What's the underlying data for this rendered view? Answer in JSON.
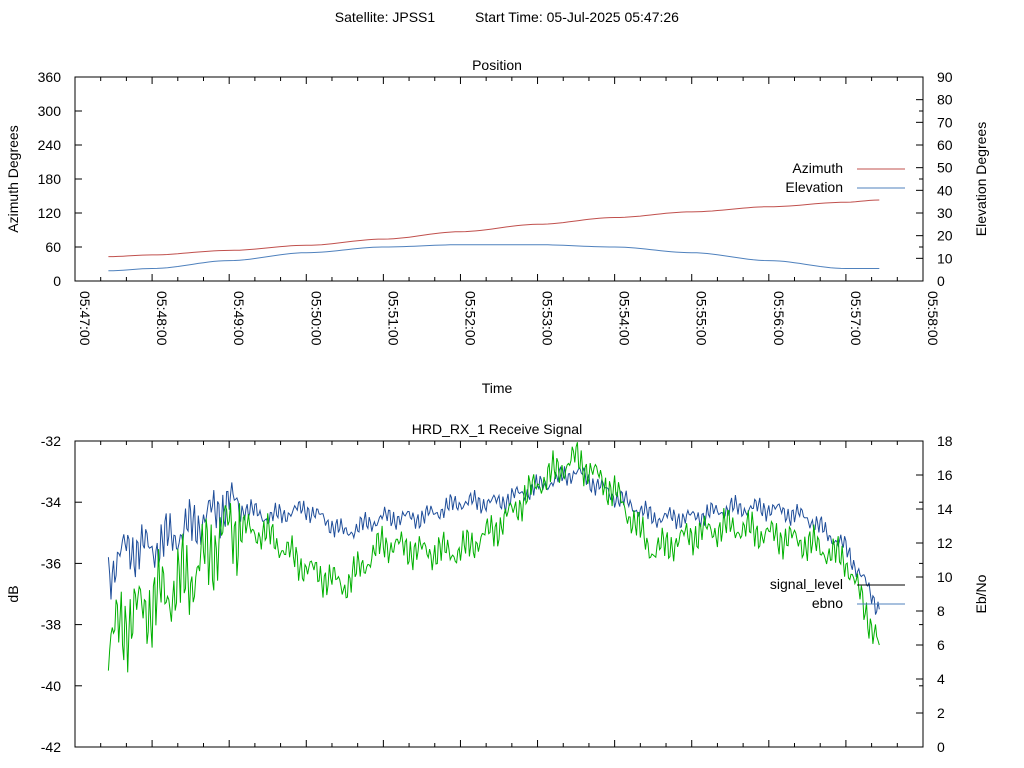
{
  "header": {
    "satellite": "Satellite: JPSS1",
    "start_time": "Start Time: 05-Jul-2025 05:47:26"
  },
  "colors": {
    "azimuth": "#c0504d",
    "elevation": "#4f81bd",
    "signal_level": "#1f4e9a",
    "ebno": "#00b000",
    "axes": "#000000"
  },
  "chart_data": [
    {
      "type": "line",
      "title": "Position",
      "xlabel": "Time",
      "ylabel": "Azimuth Degrees",
      "y2label": "Elevation Degrees",
      "xlim": [
        "05:47:00",
        "05:58:00"
      ],
      "x_ticks": [
        "05:47:00",
        "05:48:00",
        "05:49:00",
        "05:50:00",
        "05:51:00",
        "05:52:00",
        "05:53:00",
        "05:54:00",
        "05:55:00",
        "05:56:00",
        "05:57:00",
        "05:58:00"
      ],
      "ylim": [
        0,
        360
      ],
      "y_ticks": [
        "0",
        "60",
        "120",
        "180",
        "240",
        "300",
        "360"
      ],
      "y2lim": [
        0,
        90
      ],
      "y2_ticks": [
        "0",
        "10",
        "20",
        "30",
        "40",
        "50",
        "60",
        "70",
        "80",
        "90"
      ],
      "grid": false,
      "legend": "top-right",
      "series": [
        {
          "name": "Azimuth",
          "axis": "y",
          "x": [
            "05:47:26",
            "05:48:00",
            "05:49:00",
            "05:50:00",
            "05:51:00",
            "05:52:00",
            "05:53:00",
            "05:54:00",
            "05:55:00",
            "05:56:00",
            "05:57:00",
            "05:57:26"
          ],
          "values": [
            43,
            46,
            54,
            63,
            74,
            87,
            100,
            112,
            122,
            131,
            139,
            143
          ]
        },
        {
          "name": "Elevation",
          "axis": "y2",
          "x": [
            "05:47:26",
            "05:48:00",
            "05:49:00",
            "05:50:00",
            "05:51:00",
            "05:52:00",
            "05:53:00",
            "05:54:00",
            "05:55:00",
            "05:56:00",
            "05:57:00",
            "05:57:26"
          ],
          "values": [
            4.5,
            5.5,
            9,
            12.5,
            15,
            16,
            16,
            15,
            12.5,
            9,
            5.5,
            5.5
          ]
        }
      ]
    },
    {
      "type": "line",
      "title": "HRD_RX_1 Receive Signal",
      "ylabel": "dB",
      "y2label": "Eb/No",
      "xlim": [
        "05:47:00",
        "05:58:00"
      ],
      "ylim": [
        -42,
        -32
      ],
      "y_ticks": [
        "-42",
        "-40",
        "-38",
        "-36",
        "-34",
        "-32"
      ],
      "y2lim": [
        0,
        18
      ],
      "y2_ticks": [
        "0",
        "2",
        "4",
        "6",
        "8",
        "10",
        "12",
        "14",
        "16",
        "18"
      ],
      "grid": false,
      "legend": "right",
      "series": [
        {
          "name": "signal_level",
          "axis": "y",
          "x": [
            "05:47:26",
            "05:47:40",
            "05:48:00",
            "05:48:30",
            "05:49:00",
            "05:49:30",
            "05:50:00",
            "05:50:30",
            "05:51:00",
            "05:51:30",
            "05:52:00",
            "05:52:30",
            "05:53:00",
            "05:53:30",
            "05:54:00",
            "05:54:30",
            "05:55:00",
            "05:55:30",
            "05:56:00",
            "05:56:30",
            "05:57:00",
            "05:57:26"
          ],
          "values": [
            -36.3,
            -35.5,
            -35.5,
            -34.8,
            -34,
            -34.5,
            -34.2,
            -35,
            -34.5,
            -34.5,
            -34,
            -34,
            -33.5,
            -33,
            -33.8,
            -34.5,
            -34.5,
            -34.2,
            -34.2,
            -34.5,
            -35.5,
            -37.5
          ]
        },
        {
          "name": "ebno",
          "axis": "y2",
          "x": [
            "05:47:26",
            "05:47:40",
            "05:48:00",
            "05:48:30",
            "05:49:00",
            "05:49:30",
            "05:50:00",
            "05:50:30",
            "05:51:00",
            "05:51:30",
            "05:52:00",
            "05:52:30",
            "05:53:00",
            "05:53:30",
            "05:54:00",
            "05:54:30",
            "05:55:00",
            "05:55:30",
            "05:56:00",
            "05:56:30",
            "05:57:00",
            "05:57:26"
          ],
          "values": [
            6,
            7.5,
            8.5,
            10,
            13,
            12.5,
            10.5,
            9.5,
            12,
            11.5,
            11.5,
            13,
            15.5,
            17,
            15,
            11.5,
            12.5,
            13,
            12.5,
            12,
            11,
            6
          ]
        }
      ]
    }
  ]
}
